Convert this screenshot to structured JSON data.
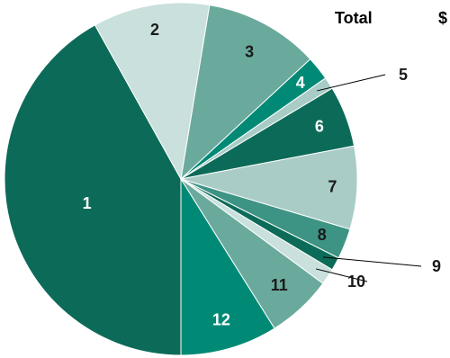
{
  "header": {
    "total_label": "Total",
    "total_value": "$"
  },
  "colors": {
    "dark": "#0c6b58",
    "light": "#c9e0dc",
    "mid": "#6aaa9d",
    "bright": "#008a76",
    "pale": "#a9ccc6",
    "teal": "#3d9484"
  },
  "chart_data": {
    "type": "pie",
    "title": "",
    "start_direction": "down",
    "order": "clockwise",
    "slices": [
      {
        "label": "1",
        "value": 41.9,
        "color": "#0c6b58",
        "label_color": "#ffffff",
        "label_mode": "inside"
      },
      {
        "label": "2",
        "value": 10.7,
        "color": "#c9e0dc",
        "label_color": "#1a1a1a",
        "label_mode": "inside"
      },
      {
        "label": "3",
        "value": 10.5,
        "color": "#6aaa9d",
        "label_color": "#1a1a1a",
        "label_mode": "inside"
      },
      {
        "label": "4",
        "value": 2.2,
        "color": "#008a76",
        "label_color": "#ffffff",
        "label_mode": "inside"
      },
      {
        "label": "5",
        "value": 1.1,
        "color": "#a9ccc6",
        "label_color": "#1a1a1a",
        "label_mode": "leader"
      },
      {
        "label": "6",
        "value": 5.6,
        "color": "#0c6b58",
        "label_color": "#ffffff",
        "label_mode": "inside"
      },
      {
        "label": "7",
        "value": 7.6,
        "color": "#a9ccc6",
        "label_color": "#1a1a1a",
        "label_mode": "inside"
      },
      {
        "label": "8",
        "value": 2.8,
        "color": "#3d9484",
        "label_color": "#1a1a1a",
        "label_mode": "inside"
      },
      {
        "label": "9",
        "value": 1.2,
        "color": "#0c6b58",
        "label_color": "#1a1a1a",
        "label_mode": "leader"
      },
      {
        "label": "10",
        "value": 1.5,
        "color": "#c9e0dc",
        "label_color": "#1a1a1a",
        "label_mode": "leader"
      },
      {
        "label": "11",
        "value": 6.0,
        "color": "#6aaa9d",
        "label_color": "#1a1a1a",
        "label_mode": "inside"
      },
      {
        "label": "12",
        "value": 8.9,
        "color": "#008a76",
        "label_color": "#ffffff",
        "label_mode": "inside"
      }
    ]
  }
}
